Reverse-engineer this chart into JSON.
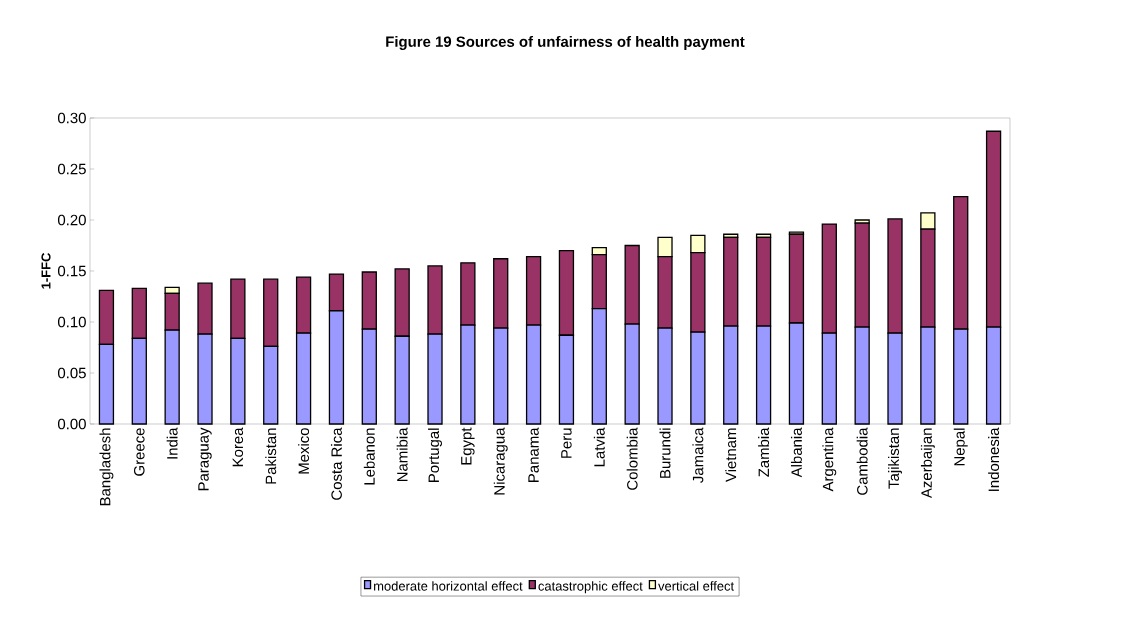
{
  "chart_data": {
    "type": "bar",
    "title": "Figure 19    Sources of unfairness of health payment",
    "ylabel": "1-FFC",
    "categories": [
      "Bangladesh",
      "Greece",
      "India",
      "Paraguay",
      "Korea",
      "Pakistan",
      "Mexico",
      "Costa Rica",
      "Lebanon",
      "Namibia",
      "Portugal",
      "Egypt",
      "Nicaragua",
      "Panama",
      "Peru",
      "Latvia",
      "Colombia",
      "Burundi",
      "Jamaica",
      "Vietnam",
      "Zambia",
      "Albania",
      "Argentina",
      "Cambodia",
      "Tajikistan",
      "Azerbaijan",
      "Nepal",
      "Indonesia"
    ],
    "stacked": true,
    "series": [
      {
        "name": "moderate horizontal effect",
        "color": "#9999ff",
        "values": [
          0.078,
          0.084,
          0.092,
          0.088,
          0.084,
          0.076,
          0.089,
          0.111,
          0.093,
          0.086,
          0.088,
          0.097,
          0.094,
          0.097,
          0.087,
          0.113,
          0.098,
          0.094,
          0.09,
          0.096,
          0.096,
          0.099,
          0.089,
          0.095,
          0.089,
          0.095,
          0.093,
          0.095
        ]
      },
      {
        "name": "catastrophic effect",
        "color": "#993366",
        "values": [
          0.053,
          0.049,
          0.036,
          0.05,
          0.058,
          0.066,
          0.055,
          0.036,
          0.056,
          0.066,
          0.067,
          0.061,
          0.068,
          0.067,
          0.083,
          0.053,
          0.077,
          0.07,
          0.078,
          0.087,
          0.087,
          0.087,
          0.107,
          0.102,
          0.112,
          0.096,
          0.13,
          0.192
        ]
      },
      {
        "name": "vertical effect",
        "color": "#ffffcc",
        "values": [
          0,
          0,
          0.006,
          0,
          0,
          0,
          0,
          0,
          0,
          0,
          0,
          0,
          0,
          0,
          0,
          0.007,
          0,
          0.019,
          0.017,
          0.003,
          0.003,
          0.002,
          0,
          0.003,
          0,
          0.016,
          0,
          0
        ]
      }
    ],
    "ylim": [
      0,
      0.3
    ],
    "yticks": [
      {
        "value": 0,
        "label": "0.00"
      },
      {
        "value": 0.05,
        "label": "0.05"
      },
      {
        "value": 0.1,
        "label": "0.10"
      },
      {
        "value": 0.15,
        "label": "0.15"
      },
      {
        "value": 0.2,
        "label": "0.20"
      },
      {
        "value": 0.25,
        "label": "0.25"
      },
      {
        "value": 0.3,
        "label": "0.30"
      }
    ],
    "grid": false,
    "legend": "bottom"
  }
}
